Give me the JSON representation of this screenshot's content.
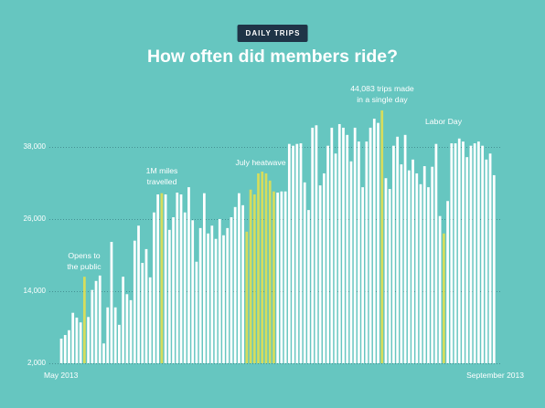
{
  "colors": {
    "background": "#66c6c0",
    "bar": "#ffffff",
    "highlight": "#d6dd5c",
    "badge": "#1f3447",
    "gridline": "#2f6f75"
  },
  "chart_data": {
    "type": "bar",
    "kicker": "DAILY TRIPS",
    "title": "How often did members ride?",
    "xlabel": "",
    "ylabel": "",
    "x_tick_labels": [
      "May 2013",
      "September 2013"
    ],
    "y_ticks": [
      2000,
      14000,
      26000,
      38000
    ],
    "y_tick_labels": [
      "2,000",
      "14,000",
      "26,000",
      "38,000"
    ],
    "ylim": [
      2000,
      45000
    ],
    "grid": true,
    "values": [
      6100,
      6700,
      7500,
      10400,
      9600,
      8800,
      16400,
      9700,
      14200,
      15700,
      16600,
      5300,
      11300,
      22200,
      11300,
      8400,
      16400,
      13500,
      12500,
      22400,
      24900,
      18700,
      21000,
      16300,
      27100,
      30100,
      30300,
      30100,
      24200,
      26300,
      30400,
      30100,
      27100,
      31300,
      25800,
      18900,
      24500,
      30300,
      23600,
      24900,
      22700,
      26000,
      23300,
      24500,
      26300,
      28000,
      30300,
      28300,
      23900,
      30900,
      30100,
      33600,
      33900,
      33600,
      32400,
      30600,
      30400,
      30600,
      30600,
      38500,
      38200,
      38500,
      38600,
      32100,
      27500,
      41200,
      41600,
      31600,
      33600,
      38200,
      41200,
      36900,
      41800,
      41200,
      40000,
      35600,
      41200,
      38900,
      31300,
      38900,
      41200,
      42700,
      42000,
      44083,
      32800,
      31000,
      38200,
      39700,
      35100,
      40000,
      34100,
      35900,
      33600,
      31800,
      34800,
      31300,
      34700,
      38500,
      26500,
      23600,
      29000,
      38600,
      38600,
      39400,
      38900,
      36300,
      38200,
      38600,
      38900,
      38200,
      35900,
      36900,
      33300
    ],
    "highlighted": [
      false,
      false,
      false,
      false,
      false,
      false,
      true,
      false,
      false,
      false,
      false,
      false,
      false,
      false,
      false,
      false,
      false,
      false,
      false,
      false,
      false,
      false,
      false,
      false,
      false,
      false,
      true,
      false,
      false,
      false,
      false,
      false,
      false,
      false,
      false,
      false,
      false,
      false,
      false,
      false,
      false,
      false,
      false,
      false,
      false,
      false,
      false,
      false,
      true,
      true,
      true,
      true,
      true,
      true,
      true,
      true,
      false,
      false,
      false,
      false,
      false,
      false,
      false,
      false,
      false,
      false,
      false,
      false,
      false,
      false,
      false,
      false,
      false,
      false,
      false,
      false,
      false,
      false,
      false,
      false,
      false,
      false,
      false,
      true,
      false,
      false,
      false,
      false,
      false,
      false,
      false,
      false,
      false,
      false,
      false,
      false,
      false,
      false,
      false,
      true,
      false,
      false,
      false,
      false,
      false,
      false,
      false,
      false,
      false,
      false,
      false,
      false,
      false
    ],
    "annotations": [
      {
        "lines": [
          "Opens to",
          "the public"
        ]
      },
      {
        "lines": [
          "1M miles",
          "travelled"
        ]
      },
      {
        "lines": [
          "July heatwave"
        ]
      },
      {
        "lines": [
          "44,083 trips made",
          "in a single day"
        ]
      },
      {
        "lines": [
          "Labor Day"
        ]
      }
    ]
  }
}
